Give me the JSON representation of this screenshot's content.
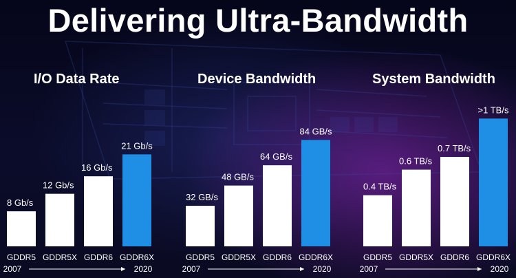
{
  "page": {
    "title": "Delivering Ultra-Bandwidth"
  },
  "colors": {
    "bar": "#ffffff",
    "highlight": "#1f8fe6",
    "text": "#ffffff"
  },
  "chart_data": [
    {
      "type": "bar",
      "title": "I/O Data Rate",
      "categories": [
        "GDDR5",
        "GDDR5X",
        "GDDR6",
        "GDDR6X"
      ],
      "values": [
        8,
        12,
        16,
        21
      ],
      "value_labels": [
        "8 Gb/s",
        "12 Gb/s",
        "16 Gb/s",
        "21 Gb/s"
      ],
      "unit": "Gb/s",
      "ylim": [
        0,
        22
      ],
      "highlight_index": 3,
      "timeline": {
        "start": "2007",
        "end": "2020"
      }
    },
    {
      "type": "bar",
      "title": "Device Bandwidth",
      "categories": [
        "GDDR5",
        "GDDR5X",
        "GDDR6",
        "GDDR6X"
      ],
      "values": [
        32,
        48,
        64,
        84
      ],
      "value_labels": [
        "32 GB/s",
        "48 GB/s",
        "64 GB/s",
        "84 GB/s"
      ],
      "unit": "GB/s",
      "ylim": [
        0,
        88
      ],
      "highlight_index": 3,
      "timeline": {
        "start": "2007",
        "end": "2020"
      }
    },
    {
      "type": "bar",
      "title": "System Bandwidth",
      "categories": [
        "GDDR5",
        "GDDR5X",
        "GDDR6",
        "GDDR6X"
      ],
      "values": [
        0.4,
        0.6,
        0.7,
        1.0
      ],
      "value_labels": [
        "0.4 TB/s",
        "0.6 TB/s",
        "0.7 TB/s",
        ">1 TB/s"
      ],
      "unit": "TB/s",
      "ylim": [
        0,
        1.05
      ],
      "highlight_index": 3,
      "timeline": {
        "start": "2007",
        "end": "2020"
      }
    }
  ]
}
